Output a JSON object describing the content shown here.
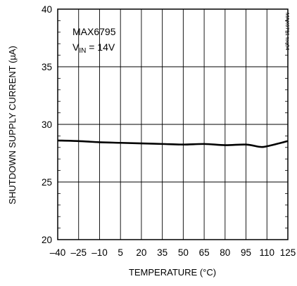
{
  "chart_data": {
    "type": "line",
    "title": "",
    "xlabel": "TEMPERATURE (°C)",
    "ylabel": "SHUTDOWN SUPPLY CURRENT (µA)",
    "xlim": [
      -40,
      125
    ],
    "ylim": [
      20,
      40
    ],
    "x_ticks": [
      "-40",
      "-25",
      "-10",
      "5",
      "20",
      "35",
      "50",
      "65",
      "80",
      "95",
      "110",
      "125"
    ],
    "y_ticks": [
      "20",
      "25",
      "30",
      "35",
      "40"
    ],
    "grid": true,
    "annotation": {
      "part": "MAX6795",
      "vin_prefix": "V",
      "vin_sub": "IN",
      "vin_value": " = 14V"
    },
    "side_note": "MAX6791 toc04",
    "series": [
      {
        "x": [
          -40,
          -25,
          -10,
          5,
          20,
          35,
          50,
          65,
          80,
          95,
          105,
          110,
          125
        ],
        "values": [
          28.6,
          28.55,
          28.45,
          28.4,
          28.35,
          28.3,
          28.25,
          28.3,
          28.2,
          28.25,
          28.05,
          28.1,
          28.55
        ]
      }
    ]
  }
}
